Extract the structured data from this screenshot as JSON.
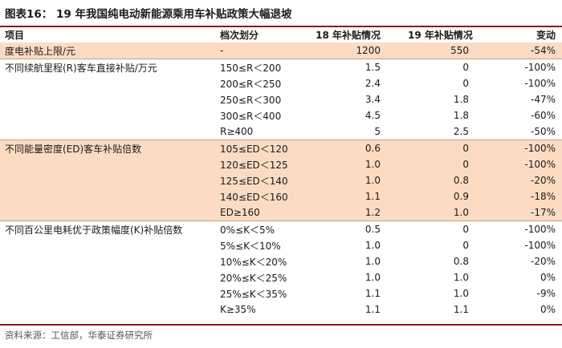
{
  "title": "图表16：  19 年我国纯电动新能源乘用车补贴政策大幅退坡",
  "headers": [
    "项目",
    "档次划分",
    "18 年补贴情况",
    "19 年补贴情况",
    "变动"
  ],
  "rows": [
    {
      "item": "度电补贴上限/元",
      "tier": "-",
      "y18": "1200",
      "y19": "550",
      "change": "-54%"
    },
    {
      "item": "不同续航里程(R)客车直接补贴/万元",
      "tier": "150≤R＜200",
      "y18": "1.5",
      "y19": "0",
      "change": "-100%"
    },
    {
      "item": "",
      "tier": "200≤R＜250",
      "y18": "2.4",
      "y19": "0",
      "change": "-100%"
    },
    {
      "item": "",
      "tier": "250≤R＜300",
      "y18": "3.4",
      "y19": "1.8",
      "change": "-47%"
    },
    {
      "item": "",
      "tier": "300≤R＜400",
      "y18": "4.5",
      "y19": "1.8",
      "change": "-60%"
    },
    {
      "item": "",
      "tier": "R≥400",
      "y18": "5",
      "y19": "2.5",
      "change": "-50%"
    },
    {
      "item": "不同能量密度(ED)客车补贴倍数",
      "tier": "105≤ED＜120",
      "y18": "0.6",
      "y19": "0",
      "change": "-100%"
    },
    {
      "item": "",
      "tier": "120≤ED＜125",
      "y18": "1.0",
      "y19": "0",
      "change": "-100%"
    },
    {
      "item": "",
      "tier": "125≤ED＜140",
      "y18": "1.0",
      "y19": "0.8",
      "change": "-20%"
    },
    {
      "item": "",
      "tier": "140≤ED＜160",
      "y18": "1.1",
      "y19": "0.9",
      "change": "-18%"
    },
    {
      "item": "",
      "tier": "ED≥160",
      "y18": "1.2",
      "y19": "1.0",
      "change": "-17%"
    },
    {
      "item": "不同百公里电耗优于政策幅度(K)补贴倍数",
      "tier": "0%≤K＜5%",
      "y18": "0.5",
      "y19": "0",
      "change": "-100%"
    },
    {
      "item": "",
      "tier": "5%≤K＜10%",
      "y18": "1.0",
      "y19": "0",
      "change": "-100%"
    },
    {
      "item": "",
      "tier": "10%≤K＜20%",
      "y18": "1.0",
      "y19": "0.8",
      "change": "-20%"
    },
    {
      "item": "",
      "tier": "20%≤K＜25%",
      "y18": "1.0",
      "y19": "1.0",
      "change": "0%"
    },
    {
      "item": "",
      "tier": "25%≤K＜35%",
      "y18": "1.1",
      "y19": "1.0",
      "change": "-9%"
    },
    {
      "item": "",
      "tier": "K≥35%",
      "y18": "1.1",
      "y19": "1.1",
      "change": "0%"
    }
  ],
  "source": "资料来源：工信部，华泰证券研究所",
  "colors": {
    "highlight": "#fbdcc2",
    "rule": "#8b1a1a"
  }
}
